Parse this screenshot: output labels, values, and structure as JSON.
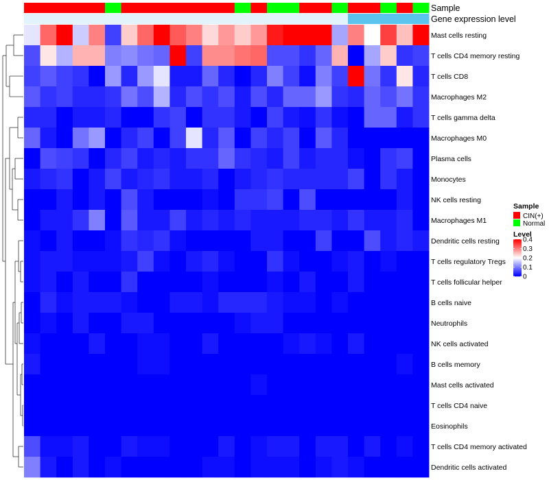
{
  "chart_data": {
    "type": "heatmap",
    "title": "",
    "annotation_tracks": [
      {
        "name": "Sample",
        "values": [
          "CIN(+)",
          "CIN(+)",
          "CIN(+)",
          "CIN(+)",
          "CIN(+)",
          "Normal",
          "CIN(+)",
          "CIN(+)",
          "CIN(+)",
          "CIN(+)",
          "CIN(+)",
          "CIN(+)",
          "CIN(+)",
          "Normal",
          "CIN(+)",
          "Normal",
          "Normal",
          "CIN(+)",
          "CIN(+)",
          "Normal",
          "CIN(+)",
          "CIN(+)",
          "Normal",
          "CIN(+)",
          "Normal"
        ]
      },
      {
        "name": "Gene expression level",
        "values": [
          "low",
          "low",
          "low",
          "low",
          "low",
          "low",
          "low",
          "low",
          "low",
          "low",
          "low",
          "low",
          "low",
          "low",
          "low",
          "low",
          "low",
          "low",
          "low",
          "low",
          "high",
          "high",
          "high",
          "high",
          "high"
        ]
      }
    ],
    "row_labels": [
      "Mast cells resting",
      "T cells CD4 memory resting",
      "T cells CD8",
      "Macrophages M2",
      "T cells gamma delta",
      "Macrophages M0",
      "Plasma cells",
      "Monocytes",
      "NK cells resting",
      "Macrophages M1",
      "Dendritic cells resting",
      "T cells regulatory  Tregs",
      "T cells follicular helper",
      "B cells naive",
      "Neutrophils",
      "NK cells activated",
      "B cells memory",
      "Mast cells activated",
      "T cells CD4 naive",
      "Eosinophils",
      "T cells CD4 memory activated",
      "Dendritic cells activated"
    ],
    "values": [
      [
        0.18,
        0.32,
        0.4,
        0.16,
        0.3,
        0.05,
        0.24,
        0.32,
        0.4,
        0.33,
        0.3,
        0.23,
        0.28,
        0.24,
        0.28,
        0.38,
        0.4,
        0.4,
        0.4,
        0.13,
        0.3,
        0.2,
        0.35,
        0.25,
        0.4
      ],
      [
        0.06,
        0.22,
        0.14,
        0.26,
        0.26,
        0.1,
        0.11,
        0.09,
        0.08,
        0.4,
        0.05,
        0.29,
        0.29,
        0.31,
        0.32,
        0.06,
        0.06,
        0.04,
        0.08,
        0.26,
        0.0,
        0.13,
        0.24,
        0.04,
        0.05
      ],
      [
        0.05,
        0.07,
        0.05,
        0.04,
        0.0,
        0.12,
        0.03,
        0.12,
        0.18,
        0.02,
        0.02,
        0.08,
        0.03,
        0.0,
        0.03,
        0.1,
        0.05,
        0.01,
        0.1,
        0.05,
        0.4,
        0.09,
        0.04,
        0.22,
        0.03
      ],
      [
        0.07,
        0.04,
        0.05,
        0.03,
        0.03,
        0.04,
        0.09,
        0.06,
        0.14,
        0.03,
        0.06,
        0.04,
        0.06,
        0.02,
        0.06,
        0.03,
        0.08,
        0.08,
        0.12,
        0.04,
        0.03,
        0.08,
        0.06,
        0.09,
        0.04
      ],
      [
        0.03,
        0.03,
        0.0,
        0.02,
        0.02,
        0.03,
        0.0,
        0.0,
        0.04,
        0.05,
        0.0,
        0.04,
        0.04,
        0.02,
        0.0,
        0.05,
        0.02,
        0.01,
        0.04,
        0.01,
        0.0,
        0.08,
        0.08,
        0.02,
        0.04
      ],
      [
        0.08,
        0.02,
        0.0,
        0.09,
        0.12,
        0.0,
        0.03,
        0.05,
        0.0,
        0.05,
        0.18,
        0.03,
        0.07,
        0.0,
        0.05,
        0.03,
        0.05,
        0.0,
        0.07,
        0.03,
        0.0,
        0.0,
        0.0,
        0.0,
        0.0
      ],
      [
        0.0,
        0.06,
        0.05,
        0.04,
        0.0,
        0.03,
        0.05,
        0.02,
        0.03,
        0.02,
        0.04,
        0.04,
        0.08,
        0.04,
        0.03,
        0.02,
        0.05,
        0.02,
        0.03,
        0.03,
        0.01,
        0.0,
        0.04,
        0.05,
        0.0
      ],
      [
        0.02,
        0.03,
        0.04,
        0.0,
        0.02,
        0.05,
        0.02,
        0.03,
        0.04,
        0.02,
        0.02,
        0.03,
        0.0,
        0.02,
        0.03,
        0.04,
        0.03,
        0.03,
        0.03,
        0.03,
        0.05,
        0.0,
        0.04,
        0.02,
        0.0
      ],
      [
        0.0,
        0.0,
        0.02,
        0.0,
        0.02,
        0.0,
        0.06,
        0.02,
        0.0,
        0.0,
        0.0,
        0.01,
        0.0,
        0.04,
        0.04,
        0.05,
        0.0,
        0.06,
        0.0,
        0.0,
        0.0,
        0.0,
        0.0,
        0.02,
        0.0
      ],
      [
        0.0,
        0.02,
        0.02,
        0.04,
        0.1,
        0.0,
        0.07,
        0.02,
        0.02,
        0.05,
        0.02,
        0.03,
        0.02,
        0.03,
        0.02,
        0.02,
        0.02,
        0.03,
        0.03,
        0.02,
        0.04,
        0.02,
        0.02,
        0.03,
        0.0
      ],
      [
        0.01,
        0.0,
        0.02,
        0.0,
        0.0,
        0.01,
        0.04,
        0.03,
        0.04,
        0.01,
        0.0,
        0.0,
        0.0,
        0.0,
        0.02,
        0.02,
        0.0,
        0.0,
        0.05,
        0.0,
        0.0,
        0.06,
        0.02,
        0.03,
        0.02
      ],
      [
        0.01,
        0.02,
        0.02,
        0.01,
        0.01,
        0.01,
        0.02,
        0.05,
        0.01,
        0.0,
        0.02,
        0.03,
        0.01,
        0.0,
        0.0,
        0.04,
        0.01,
        0.0,
        0.0,
        0.01,
        0.02,
        0.0,
        0.01,
        0.0,
        0.0
      ],
      [
        0.01,
        0.02,
        0.0,
        0.02,
        0.0,
        0.0,
        0.04,
        0.0,
        0.0,
        0.0,
        0.0,
        0.01,
        0.0,
        0.0,
        0.0,
        0.01,
        0.0,
        0.02,
        0.0,
        0.0,
        0.02,
        0.0,
        0.0,
        0.0,
        0.0
      ],
      [
        0.0,
        0.03,
        0.01,
        0.02,
        0.02,
        0.02,
        0.01,
        0.0,
        0.0,
        0.02,
        0.02,
        0.01,
        0.03,
        0.03,
        0.03,
        0.02,
        0.01,
        0.01,
        0.0,
        0.01,
        0.0,
        0.0,
        0.0,
        0.0,
        0.0
      ],
      [
        0.0,
        0.01,
        0.0,
        0.02,
        0.0,
        0.0,
        0.02,
        0.02,
        0.0,
        0.0,
        0.0,
        0.0,
        0.0,
        0.01,
        0.02,
        0.02,
        0.0,
        0.0,
        0.0,
        0.0,
        0.0,
        0.0,
        0.0,
        0.0,
        0.0
      ],
      [
        0.01,
        0.0,
        0.0,
        0.0,
        0.02,
        0.0,
        0.0,
        0.01,
        0.01,
        0.0,
        0.0,
        0.02,
        0.0,
        0.0,
        0.0,
        0.0,
        0.01,
        0.02,
        0.01,
        0.0,
        0.02,
        0.0,
        0.0,
        0.0,
        0.0
      ],
      [
        0.02,
        0.0,
        0.0,
        0.0,
        0.0,
        0.0,
        0.0,
        0.01,
        0.01,
        0.0,
        0.0,
        0.0,
        0.0,
        0.0,
        0.0,
        0.0,
        0.0,
        0.0,
        0.0,
        0.0,
        0.0,
        0.0,
        0.0,
        0.01,
        0.0
      ],
      [
        0.0,
        0.0,
        0.0,
        0.0,
        0.0,
        0.0,
        0.0,
        0.0,
        0.0,
        0.0,
        0.0,
        0.0,
        0.0,
        0.0,
        0.01,
        0.0,
        0.0,
        0.0,
        0.0,
        0.0,
        0.0,
        0.0,
        0.0,
        0.0,
        0.0
      ],
      [
        0.0,
        0.0,
        0.0,
        0.0,
        0.0,
        0.0,
        0.0,
        0.0,
        0.0,
        0.0,
        0.0,
        0.0,
        0.0,
        0.0,
        0.0,
        0.0,
        0.0,
        0.0,
        0.0,
        0.0,
        0.0,
        0.0,
        0.0,
        0.0,
        0.0
      ],
      [
        0.0,
        0.0,
        0.0,
        0.0,
        0.0,
        0.0,
        0.0,
        0.0,
        0.0,
        0.0,
        0.0,
        0.0,
        0.0,
        0.0,
        0.0,
        0.0,
        0.0,
        0.0,
        0.0,
        0.0,
        0.0,
        0.0,
        0.0,
        0.0,
        0.0
      ],
      [
        0.06,
        0.01,
        0.01,
        0.02,
        0.0,
        0.0,
        0.02,
        0.01,
        0.01,
        0.0,
        0.0,
        0.0,
        0.02,
        0.0,
        0.01,
        0.02,
        0.02,
        0.0,
        0.02,
        0.02,
        0.0,
        0.02,
        0.0,
        0.01,
        0.0
      ],
      [
        0.1,
        0.02,
        0.0,
        0.02,
        0.0,
        0.01,
        0.0,
        0.0,
        0.0,
        0.0,
        0.0,
        0.01,
        0.01,
        0.0,
        0.01,
        0.01,
        0.01,
        0.0,
        0.01,
        0.02,
        0.01,
        0.0,
        0.0,
        0.0,
        0.0
      ]
    ],
    "color_scale": {
      "min": 0,
      "max": 0.4,
      "low": "#0000ff",
      "mid": "#ffffff",
      "high": "#ff0000"
    },
    "legend": {
      "sample_title": "Sample",
      "sample_entries": [
        {
          "label": "CIN(+)",
          "color": "#ff0000"
        },
        {
          "label": "Normal",
          "color": "#00ff00"
        }
      ],
      "level_title": "Level",
      "level_ticks": [
        "0.4",
        "0.3",
        "0.2",
        "0.1",
        "0"
      ],
      "level_tick_values": [
        0.4,
        0.3,
        0.2,
        0.1,
        0
      ],
      "placement": "right"
    },
    "annotation_colors": {
      "CIN(+)": "#ff0000",
      "Normal": "#00ff00",
      "low": "#e3f3fb",
      "high": "#5bc4ee"
    },
    "row_dendrogram": true
  }
}
